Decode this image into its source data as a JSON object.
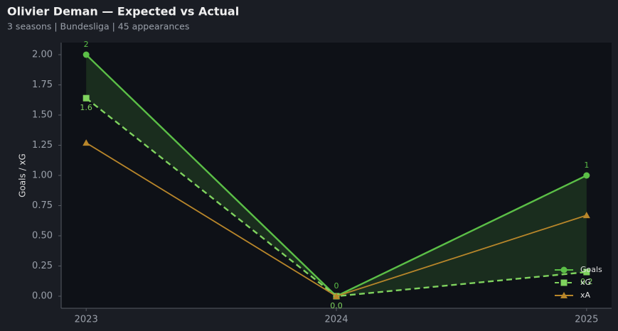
{
  "chart_data": {
    "type": "line",
    "title": "Olivier Deman — Expected vs Actual",
    "subtitle": "3 seasons | Bundesliga | 45 appearances",
    "y_label": "Goals / xG",
    "categories": [
      "2023",
      "2024",
      "2025"
    ],
    "series": [
      {
        "name": "Goals",
        "color": "#5bbf47",
        "marker": "circle",
        "dash": false,
        "values": [
          2,
          0,
          1
        ],
        "value_labels": [
          "2",
          "0",
          "1"
        ]
      },
      {
        "name": "xG",
        "color": "#7fd35e",
        "marker": "square",
        "dash": true,
        "values": [
          1.64,
          0,
          0.2
        ],
        "value_labels": [
          "1.6",
          "0.0",
          "0.2"
        ]
      },
      {
        "name": "xA",
        "color": "#b8862a",
        "marker": "triangle",
        "dash": false,
        "values": [
          1.27,
          0,
          0.67
        ]
      }
    ],
    "fill_between": true,
    "ylim": [
      -0.1,
      2.1
    ],
    "yticks": [
      {
        "value": 0,
        "label": "0.00"
      },
      {
        "value": 0.25,
        "label": "0.25"
      },
      {
        "value": 0.5,
        "label": "0.50"
      },
      {
        "value": 0.75,
        "label": "0.75"
      },
      {
        "value": 1,
        "label": "1.00"
      },
      {
        "value": 1.25,
        "label": "1.25"
      },
      {
        "value": 1.5,
        "label": "1.50"
      },
      {
        "value": 1.75,
        "label": "1.75"
      },
      {
        "value": 2,
        "label": "2.00"
      }
    ],
    "legend": "lower right"
  }
}
